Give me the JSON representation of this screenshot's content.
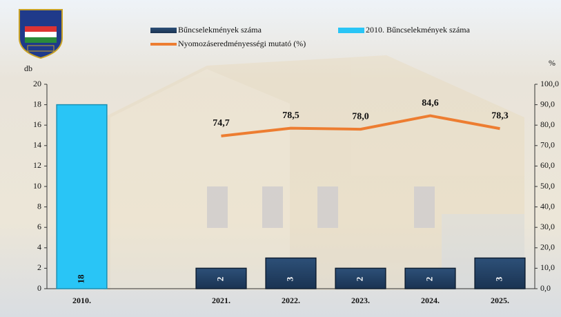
{
  "chart_data": {
    "type": "bar",
    "categories": [
      "2010.",
      null,
      "2021.",
      "2022.",
      "2023.",
      "2024.",
      "2025."
    ],
    "series": [
      {
        "name": "Bűncselekmények száma",
        "color": "#1f3864",
        "values": [
          null,
          null,
          2,
          3,
          2,
          2,
          3
        ]
      },
      {
        "name": "2010. Bűncselekmények száma",
        "color": "#29c5f6",
        "values": [
          18,
          null,
          null,
          null,
          null,
          null,
          null
        ]
      },
      {
        "name": "Nyomozáseredményességi mutató (%)",
        "type": "line",
        "axis": "y2",
        "color": "#ed7d31",
        "values": [
          null,
          null,
          74.7,
          78.5,
          78.0,
          84.6,
          78.3
        ],
        "value_labels": [
          null,
          null,
          "74,7",
          "78,5",
          "78,0",
          "84,6",
          "78,3"
        ]
      }
    ],
    "y_label": "db",
    "y2_label": "%",
    "ylim": [
      0,
      20
    ],
    "yticks": [
      0,
      2,
      4,
      6,
      8,
      10,
      12,
      14,
      16,
      18,
      20
    ],
    "y2lim": [
      0,
      100
    ],
    "y2ticks": [
      {
        "value": 0,
        "label": "0,0"
      },
      {
        "value": 10,
        "label": "10,0"
      },
      {
        "value": 20,
        "label": "20,0"
      },
      {
        "value": 30,
        "label": "30,0"
      },
      {
        "value": 40,
        "label": "40,0"
      },
      {
        "value": 50,
        "label": "50,0"
      },
      {
        "value": 60,
        "label": "60,0"
      },
      {
        "value": 70,
        "label": "70,0"
      },
      {
        "value": 80,
        "label": "80,0"
      },
      {
        "value": 90,
        "label": "90,0"
      },
      {
        "value": 100,
        "label": "100,0"
      }
    ],
    "grid": false,
    "legend": "top"
  }
}
